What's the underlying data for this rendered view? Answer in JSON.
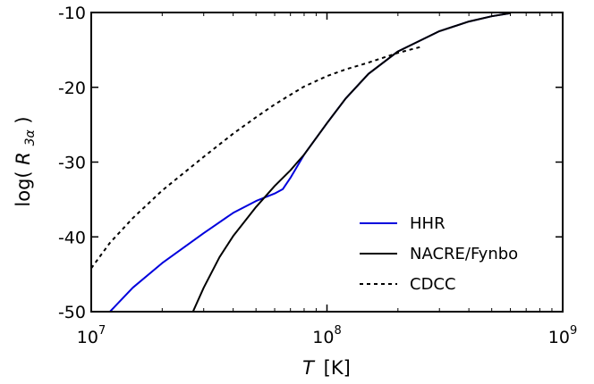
{
  "chart_data": {
    "type": "line",
    "xlabel": {
      "symbol": "T",
      "unit": "[K]"
    },
    "ylabel": {
      "prefix": "log(",
      "symbol": "R",
      "subscript": "3α",
      "suffix": ")"
    },
    "xscale": "log",
    "xlim": [
      10000000.0,
      1000000000.0
    ],
    "ylim": [
      -50,
      -10
    ],
    "xticks": [
      {
        "value": 10000000.0,
        "base": "10",
        "exp": "7"
      },
      {
        "value": 100000000.0,
        "base": "10",
        "exp": "8"
      },
      {
        "value": 1000000000.0,
        "base": "10",
        "exp": "9"
      }
    ],
    "yticks": [
      {
        "value": -10,
        "label": "-10"
      },
      {
        "value": -20,
        "label": "-20"
      },
      {
        "value": -30,
        "label": "-30"
      },
      {
        "value": -40,
        "label": "-40"
      },
      {
        "value": -50,
        "label": "-50"
      }
    ],
    "grid": false,
    "legend_position": "bottom-right",
    "series": [
      {
        "name": "HHR",
        "color": "#0000dd",
        "style": "solid",
        "x": [
          12000000.0,
          15000000.0,
          20000000.0,
          30000000.0,
          40000000.0,
          50000000.0,
          60000000.0,
          65000000.0,
          70000000.0,
          80000000.0,
          100000000.0,
          120000000.0,
          150000000.0,
          200000000.0,
          300000000.0,
          400000000.0,
          500000000.0,
          600000000.0
        ],
        "y": [
          -50,
          -46.8,
          -43.5,
          -39.5,
          -36.8,
          -35.2,
          -34.2,
          -33.6,
          -32.1,
          -29,
          -24.8,
          -21.5,
          -18.2,
          -15.2,
          -12.5,
          -11.2,
          -10.5,
          -10.1
        ]
      },
      {
        "name": "NACRE/Fynbo",
        "color": "#000000",
        "style": "solid",
        "x": [
          27000000.0,
          30000000.0,
          35000000.0,
          40000000.0,
          50000000.0,
          60000000.0,
          70000000.0,
          75000000.0,
          80000000.0,
          100000000.0,
          120000000.0,
          150000000.0,
          200000000.0,
          300000000.0,
          400000000.0,
          500000000.0,
          600000000.0
        ],
        "y": [
          -50,
          -46.8,
          -42.7,
          -39.9,
          -36,
          -33.2,
          -31.1,
          -30,
          -29,
          -24.8,
          -21.5,
          -18.2,
          -15.2,
          -12.5,
          -11.2,
          -10.5,
          -10.1
        ]
      },
      {
        "name": "CDCC",
        "color": "#000000",
        "style": "dashed",
        "x": [
          10000000.0,
          12000000.0,
          15000000.0,
          20000000.0,
          30000000.0,
          40000000.0,
          50000000.0,
          60000000.0,
          70000000.0,
          80000000.0,
          100000000.0,
          120000000.0,
          150000000.0,
          200000000.0,
          250000000.0
        ],
        "y": [
          -44.2,
          -40.8,
          -37.5,
          -33.8,
          -29.3,
          -26.2,
          -24,
          -22.3,
          -21,
          -19.9,
          -18.5,
          -17.6,
          -16.7,
          -15.4,
          -14.6
        ]
      }
    ]
  }
}
